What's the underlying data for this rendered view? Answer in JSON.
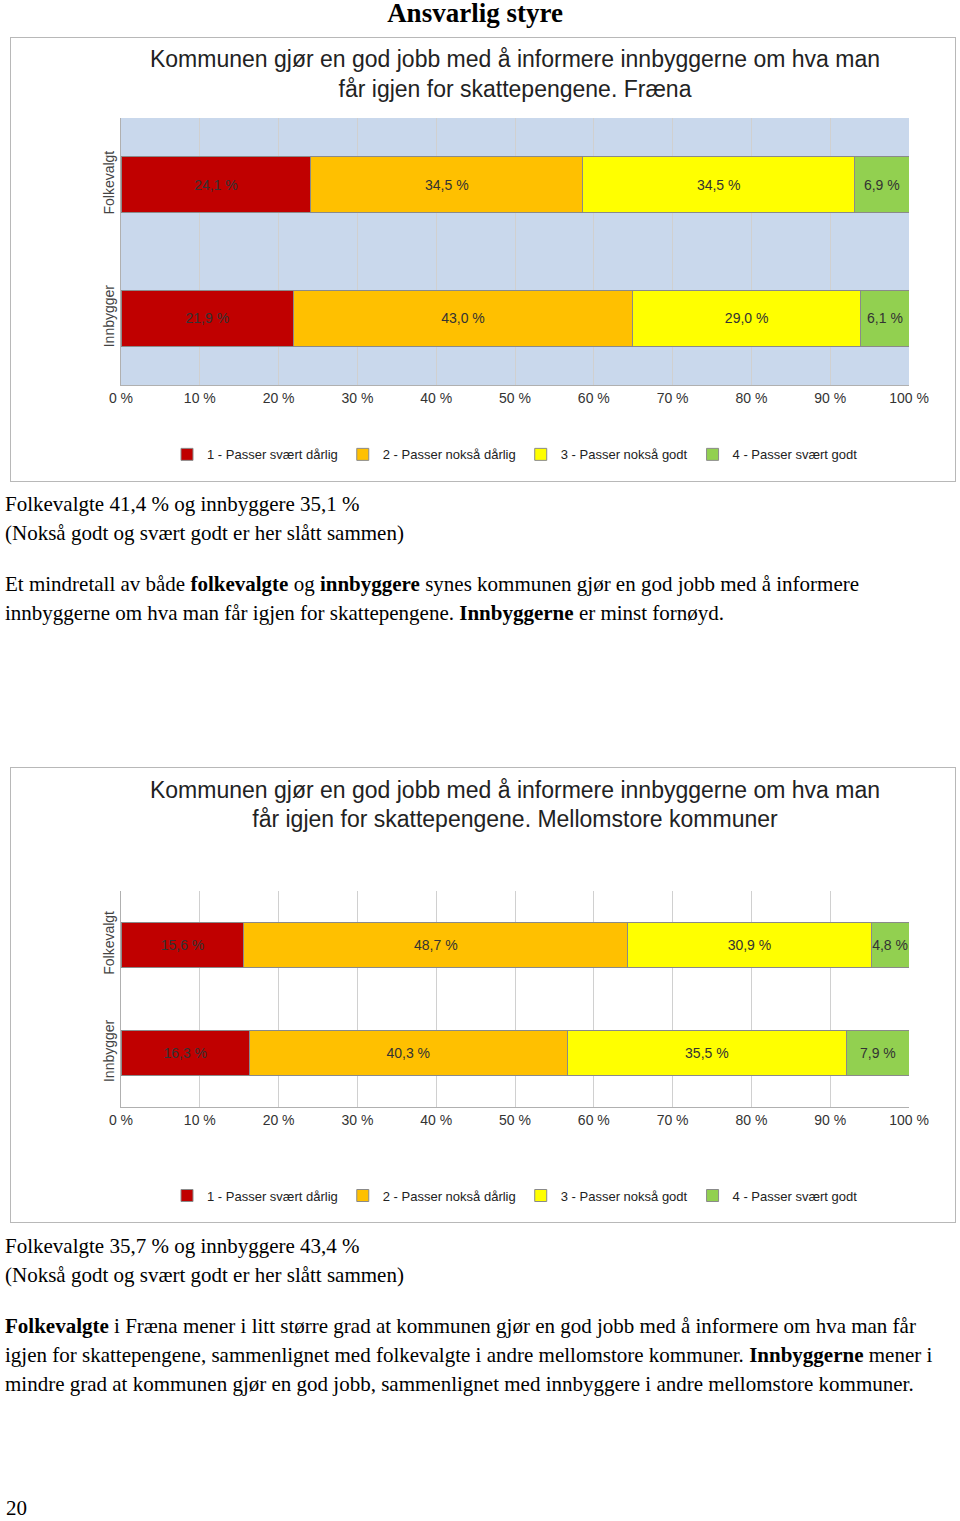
{
  "header": {
    "title": "Ansvarlig styre"
  },
  "chart_data": [
    {
      "type": "bar",
      "orientation": "horizontal",
      "stacked": true,
      "data_labels": true,
      "grid": true,
      "legend": "bottom",
      "title": "Kommunen gjør en god jobb med å informere innbyggerne om hva man får igjen for skattepengene. Fræna",
      "categories": [
        "Folkevalgt",
        "Innbygger"
      ],
      "xlim": [
        0,
        100
      ],
      "xticks": [
        {
          "value": 0,
          "label": "0 %"
        },
        {
          "value": 10,
          "label": "10 %"
        },
        {
          "value": 20,
          "label": "20 %"
        },
        {
          "value": 30,
          "label": "30 %"
        },
        {
          "value": 40,
          "label": "40 %"
        },
        {
          "value": 50,
          "label": "50 %"
        },
        {
          "value": 60,
          "label": "60 %"
        },
        {
          "value": 70,
          "label": "70 %"
        },
        {
          "value": 80,
          "label": "80 %"
        },
        {
          "value": 90,
          "label": "90 %"
        },
        {
          "value": 100,
          "label": "100 %"
        }
      ],
      "series": [
        {
          "name": "1 - Passer svært dårlig",
          "color": "#c00000",
          "values": [
            24.1,
            21.9
          ],
          "value_labels": [
            "24,1 %",
            "21,9 %"
          ]
        },
        {
          "name": "2 - Passer nokså dårlig",
          "color": "#ffc000",
          "values": [
            34.5,
            43.0
          ],
          "value_labels": [
            "34,5 %",
            "43,0 %"
          ]
        },
        {
          "name": "3 - Passer nokså godt",
          "color": "#ffff00",
          "values": [
            34.5,
            29.0
          ],
          "value_labels": [
            "34,5 %",
            "29,0 %"
          ]
        },
        {
          "name": "4 - Passer svært godt",
          "color": "#92d050",
          "values": [
            6.9,
            6.1
          ],
          "value_labels": [
            "6,9 %",
            "6,1 %"
          ]
        }
      ]
    },
    {
      "type": "bar",
      "orientation": "horizontal",
      "stacked": true,
      "data_labels": true,
      "grid": true,
      "legend": "bottom",
      "title": "Kommunen gjør en god jobb med å informere innbyggerne om hva man får igjen for skattepengene. Mellomstore kommuner",
      "categories": [
        "Folkevalgt",
        "Innbygger"
      ],
      "xlim": [
        0,
        100
      ],
      "xticks": [
        {
          "value": 0,
          "label": "0 %"
        },
        {
          "value": 10,
          "label": "10 %"
        },
        {
          "value": 20,
          "label": "20 %"
        },
        {
          "value": 30,
          "label": "30 %"
        },
        {
          "value": 40,
          "label": "40 %"
        },
        {
          "value": 50,
          "label": "50 %"
        },
        {
          "value": 60,
          "label": "60 %"
        },
        {
          "value": 70,
          "label": "70 %"
        },
        {
          "value": 80,
          "label": "80 %"
        },
        {
          "value": 90,
          "label": "90 %"
        },
        {
          "value": 100,
          "label": "100 %"
        }
      ],
      "series": [
        {
          "name": "1 - Passer svært dårlig",
          "color": "#c00000",
          "values": [
            15.6,
            16.3
          ],
          "value_labels": [
            "15,6 %",
            "16,3 %"
          ]
        },
        {
          "name": "2 - Passer nokså dårlig",
          "color": "#ffc000",
          "values": [
            48.7,
            40.3
          ],
          "value_labels": [
            "48,7 %",
            "40,3 %"
          ]
        },
        {
          "name": "3 - Passer nokså godt",
          "color": "#ffff00",
          "values": [
            30.9,
            35.5
          ],
          "value_labels": [
            "30,9 %",
            "35,5 %"
          ]
        },
        {
          "name": "4 - Passer svært godt",
          "color": "#92d050",
          "values": [
            4.8,
            7.9
          ],
          "value_labels": [
            "4,8 %",
            "7,9 %"
          ]
        }
      ]
    }
  ],
  "text_blocks": [
    {
      "summary": [
        "Folkevalgte 41,4 % og innbyggere 35,1 %",
        "(Nokså godt og svært godt er her slått sammen)"
      ],
      "body": [
        {
          "text": "Et mindretall av både "
        },
        {
          "text": "folkevalgte",
          "bold": true
        },
        {
          "text": " og "
        },
        {
          "text": "innbyggere",
          "bold": true
        },
        {
          "text": " synes kommunen gjør en god jobb med å informere innbyggerne om hva man får igjen for skattepengene. "
        },
        {
          "text": "Innbyggerne",
          "bold": true
        },
        {
          "text": " er minst fornøyd."
        }
      ]
    },
    {
      "summary": [
        "Folkevalgte 35,7 % og innbyggere 43,4 %",
        "(Nokså godt og svært godt er her slått sammen)"
      ],
      "body": [
        {
          "text": "Folkevalgte",
          "bold": true
        },
        {
          "text": " i Fræna mener i litt større grad at kommunen gjør en god jobb med å informere om hva man får igjen for skattepengene, sammenlignet med folkevalgte i andre mellomstore kommuner. "
        },
        {
          "text": "Innbyggerne",
          "bold": true
        },
        {
          "text": " mener i mindre grad at kommunen gjør en god jobb, sammenlignet med innbyggere i andre mellomstore kommuner."
        }
      ]
    }
  ],
  "footer": {
    "page_number": "20"
  }
}
